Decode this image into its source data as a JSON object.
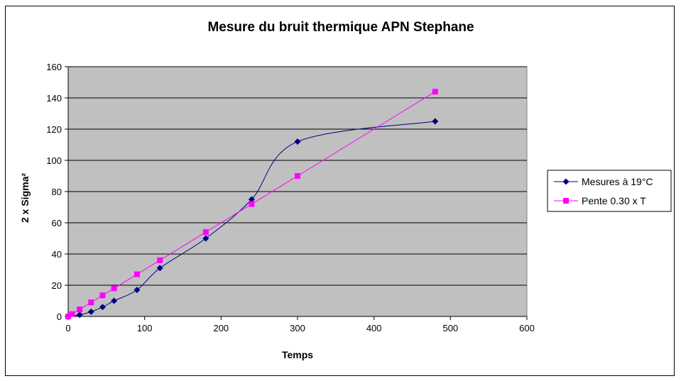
{
  "chart_data": {
    "type": "scatter",
    "title": "Mesure du bruit thermique APN Stephane",
    "xlabel": "Temps",
    "ylabel": "2 x Sigma²",
    "xlim": [
      0,
      600
    ],
    "ylim": [
      0,
      160
    ],
    "x_ticks": [
      "0",
      "100",
      "200",
      "300",
      "400",
      "500",
      "600"
    ],
    "y_ticks": [
      "0",
      "20",
      "40",
      "60",
      "80",
      "100",
      "120",
      "140",
      "160"
    ],
    "grid": "horizontal",
    "plot_background": "#c0c0c0",
    "legend_position": "right",
    "series": [
      {
        "name": "Mesures à 19°C",
        "color": "#000080",
        "marker": "diamond",
        "line": "smooth",
        "points": [
          [
            0,
            0
          ],
          [
            15,
            1
          ],
          [
            30,
            3
          ],
          [
            45,
            6
          ],
          [
            60,
            10
          ],
          [
            90,
            17
          ],
          [
            120,
            31
          ],
          [
            180,
            50
          ],
          [
            240,
            75
          ],
          [
            300,
            112
          ],
          [
            480,
            125
          ]
        ]
      },
      {
        "name": "Pente 0.30 x T",
        "color": "#ff00ff",
        "marker": "square",
        "line": "straight",
        "points": [
          [
            0,
            0
          ],
          [
            5,
            1.5
          ],
          [
            15,
            4.5
          ],
          [
            30,
            9
          ],
          [
            45,
            13.5
          ],
          [
            60,
            18
          ],
          [
            90,
            27
          ],
          [
            120,
            36
          ],
          [
            180,
            54
          ],
          [
            240,
            72
          ],
          [
            300,
            90
          ],
          [
            480,
            144
          ]
        ]
      }
    ]
  }
}
